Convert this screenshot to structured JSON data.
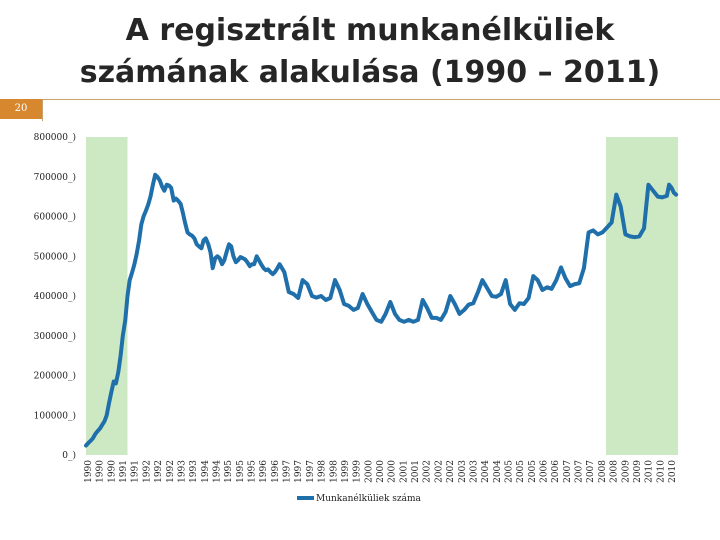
{
  "slide": {
    "title_line1": "A regisztrált munkanélküliek",
    "title_line2": "számának alakulása (1990 – 2011)",
    "slide_number": "20"
  },
  "colors": {
    "line": "#1f6fab",
    "shade": "#cde9c3",
    "accent": "#d7882f",
    "rule": "#c9a36a"
  },
  "chart_data": {
    "type": "line",
    "title": "",
    "xlabel": "",
    "ylabel": "",
    "ylim": [
      0,
      800000
    ],
    "grid": false,
    "legend_position": "bottom",
    "y_ticks": [
      "0_)",
      "100000_)",
      "200000_)",
      "300000_)",
      "400000_)",
      "500000_)",
      "600000_)",
      "700000_)",
      "800000_)"
    ],
    "x_tick_labels": [
      "1990",
      "1990",
      "1990",
      "1991",
      "1991",
      "1992",
      "1992",
      "1992",
      "1993",
      "1993",
      "1994",
      "1994",
      "1995",
      "1995",
      "1995",
      "1996",
      "1996",
      "1997",
      "1997",
      "1997",
      "1998",
      "1998",
      "1999",
      "1999",
      "2000",
      "2000",
      "2000",
      "2001",
      "2001",
      "2002",
      "2002",
      "2002",
      "2003",
      "2003",
      "2004",
      "2004",
      "2005",
      "2005",
      "2005",
      "2006",
      "2006",
      "2007",
      "2007",
      "2007",
      "2008",
      "2008",
      "2009",
      "2009",
      "2010",
      "2010",
      "2010"
    ],
    "shaded_periods": [
      {
        "from": 0,
        "to": 1.5
      },
      {
        "from": 18.8,
        "to": 21.4
      }
    ],
    "series": [
      {
        "name": "Munkanélküliek száma",
        "x": [
          0.0,
          0.08,
          0.17,
          0.25,
          0.33,
          0.42,
          0.5,
          0.58,
          0.67,
          0.75,
          0.83,
          0.92,
          1.0,
          1.08,
          1.17,
          1.25,
          1.33,
          1.42,
          1.5,
          1.58,
          1.67,
          1.75,
          1.83,
          1.92,
          2.0,
          2.08,
          2.17,
          2.25,
          2.33,
          2.42,
          2.5,
          2.58,
          2.67,
          2.75,
          2.83,
          2.92,
          3.0,
          3.08,
          3.17,
          3.25,
          3.33,
          3.42,
          3.5,
          3.58,
          3.67,
          3.75,
          3.83,
          3.92,
          4.0,
          4.08,
          4.17,
          4.25,
          4.33,
          4.42,
          4.5,
          4.58,
          4.67,
          4.75,
          4.83,
          4.92,
          5.0,
          5.08,
          5.17,
          5.25,
          5.33,
          5.42,
          5.5,
          5.58,
          5.67,
          5.75,
          5.83,
          5.92,
          6.0,
          6.08,
          6.17,
          6.25,
          6.33,
          6.42,
          6.5,
          6.58,
          6.67,
          6.75,
          6.83,
          6.92,
          7.0,
          7.17,
          7.33,
          7.5,
          7.67,
          7.83,
          8.0,
          8.17,
          8.33,
          8.5,
          8.67,
          8.83,
          9.0,
          9.17,
          9.33,
          9.5,
          9.67,
          9.83,
          10.0,
          10.17,
          10.33,
          10.5,
          10.67,
          10.83,
          11.0,
          11.17,
          11.33,
          11.5,
          11.67,
          11.83,
          12.0,
          12.17,
          12.33,
          12.5,
          12.67,
          12.83,
          13.0,
          13.17,
          13.33,
          13.5,
          13.67,
          13.83,
          14.0,
          14.17,
          14.33,
          14.5,
          14.67,
          14.83,
          15.0,
          15.17,
          15.33,
          15.5,
          15.67,
          15.83,
          16.0,
          16.17,
          16.33,
          16.5,
          16.67,
          16.83,
          17.0,
          17.17,
          17.33,
          17.5,
          17.67,
          17.83,
          18.0,
          18.17,
          18.33,
          18.5,
          18.67,
          18.83,
          19.0,
          19.17,
          19.33,
          19.5,
          19.67,
          19.83,
          20.0,
          20.17,
          20.33,
          20.5,
          20.67,
          20.83,
          21.0,
          21.08,
          21.17,
          21.25,
          21.33
        ],
        "values": [
          24000,
          30000,
          36000,
          42000,
          52000,
          60000,
          66000,
          75000,
          85000,
          100000,
          130000,
          160000,
          185000,
          180000,
          210000,
          250000,
          300000,
          340000,
          400000,
          440000,
          460000,
          480000,
          505000,
          540000,
          580000,
          600000,
          615000,
          630000,
          650000,
          680000,
          705000,
          700000,
          690000,
          675000,
          665000,
          680000,
          678000,
          672000,
          640000,
          645000,
          640000,
          632000,
          610000,
          585000,
          560000,
          555000,
          552000,
          545000,
          530000,
          525000,
          520000,
          540000,
          545000,
          530000,
          510000,
          470000,
          495000,
          500000,
          495000,
          480000,
          490000,
          510000,
          530000,
          525000,
          500000,
          485000,
          490000,
          498000,
          495000,
          492000,
          485000,
          475000,
          480000,
          480000,
          500000,
          490000,
          480000,
          470000,
          465000,
          467000,
          460000,
          455000,
          460000,
          470000,
          480000,
          460000,
          410000,
          405000,
          395000,
          440000,
          430000,
          400000,
          396000,
          400000,
          390000,
          395000,
          440000,
          415000,
          380000,
          375000,
          365000,
          370000,
          405000,
          380000,
          360000,
          340000,
          335000,
          355000,
          385000,
          355000,
          340000,
          335000,
          340000,
          335000,
          340000,
          390000,
          370000,
          345000,
          345000,
          340000,
          360000,
          400000,
          380000,
          355000,
          365000,
          378000,
          382000,
          410000,
          440000,
          420000,
          400000,
          398000,
          405000,
          440000,
          380000,
          365000,
          382000,
          380000,
          395000,
          450000,
          440000,
          415000,
          422000,
          418000,
          440000,
          472000,
          445000,
          425000,
          430000,
          432000,
          470000,
          560000,
          565000,
          555000,
          560000,
          572000,
          585000,
          655000,
          625000,
          555000,
          550000,
          548000,
          550000,
          570000,
          680000,
          665000,
          650000,
          648000,
          652000,
          680000,
          672000,
          660000,
          655000
        ]
      }
    ]
  }
}
